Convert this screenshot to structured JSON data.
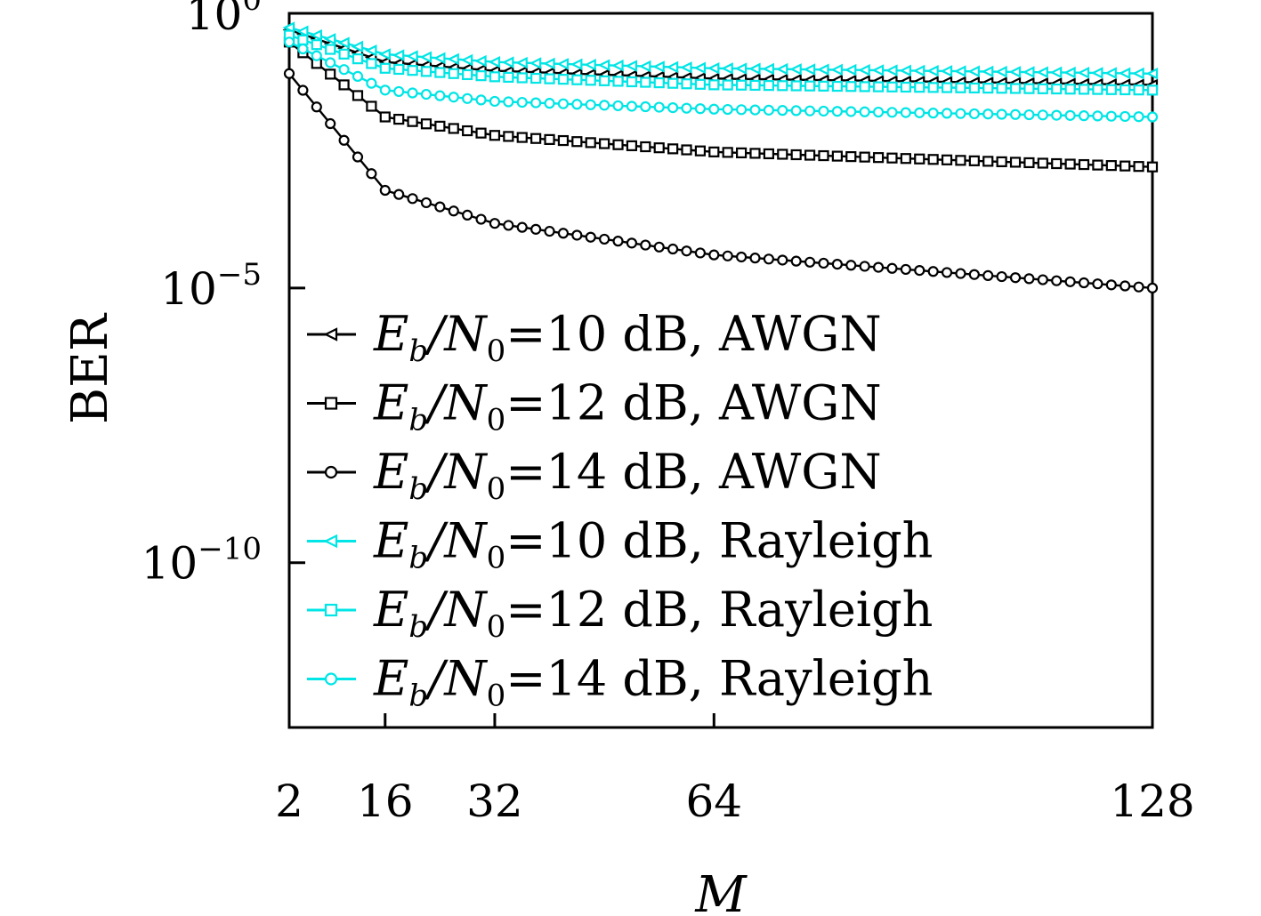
{
  "chart_data": {
    "type": "line",
    "xlabel": "M",
    "ylabel": "BER",
    "x_range": [
      2,
      128
    ],
    "y_range": [
      1e-13,
      1
    ],
    "y_scale": "log",
    "x_ticks": [
      2,
      16,
      32,
      64,
      128
    ],
    "y_ticks": [
      {
        "base": "10",
        "exp": "0",
        "value": 1
      },
      {
        "base": "10",
        "exp": "−5",
        "value": 1e-05
      },
      {
        "base": "10",
        "exp": "−10",
        "value": 1e-10
      }
    ],
    "grid": false,
    "legend_position": "bottom-left",
    "series": [
      {
        "name": "Eb/N0=10 dB, AWGN",
        "legend": {
          "pre": "E",
          "sub1": "b",
          "mid": "/N",
          "sub2": "0",
          "post": "=10 dB, AWGN"
        },
        "color": "#000000",
        "marker": "triangle-left",
        "points": [
          [
            2,
            0.5
          ],
          [
            16,
            0.13
          ],
          [
            32,
            0.09
          ],
          [
            64,
            0.065
          ],
          [
            128,
            0.05
          ]
        ]
      },
      {
        "name": "Eb/N0=12 dB, AWGN",
        "legend": {
          "pre": "E",
          "sub1": "b",
          "mid": "/N",
          "sub2": "0",
          "post": "=12 dB, AWGN"
        },
        "color": "#000000",
        "marker": "square",
        "points": [
          [
            2,
            0.3
          ],
          [
            16,
            0.013
          ],
          [
            32,
            0.006
          ],
          [
            64,
            0.003
          ],
          [
            128,
            0.0016
          ]
        ]
      },
      {
        "name": "Eb/N0=14 dB, AWGN",
        "legend": {
          "pre": "E",
          "sub1": "b",
          "mid": "/N",
          "sub2": "0",
          "post": "=14 dB, AWGN"
        },
        "color": "#000000",
        "marker": "circle",
        "points": [
          [
            2,
            0.08
          ],
          [
            16,
            0.0006
          ],
          [
            32,
            0.00015
          ],
          [
            64,
            4e-05
          ],
          [
            128,
            1e-05
          ]
        ]
      },
      {
        "name": "Eb/N0=10 dB, Rayleigh",
        "legend": {
          "pre": "E",
          "sub1": "b",
          "mid": "/N",
          "sub2": "0",
          "post": "=10 dB, Rayleigh"
        },
        "color": "#00e5e5",
        "marker": "triangle-left",
        "points": [
          [
            2,
            0.55
          ],
          [
            16,
            0.18
          ],
          [
            32,
            0.13
          ],
          [
            64,
            0.1
          ],
          [
            128,
            0.08
          ]
        ]
      },
      {
        "name": "Eb/N0=12 dB, Rayleigh",
        "legend": {
          "pre": "E",
          "sub1": "b",
          "mid": "/N",
          "sub2": "0",
          "post": "=12 dB, Rayleigh"
        },
        "color": "#00e5e5",
        "marker": "square",
        "points": [
          [
            2,
            0.4
          ],
          [
            16,
            0.1
          ],
          [
            32,
            0.07
          ],
          [
            64,
            0.05
          ],
          [
            128,
            0.04
          ]
        ]
      },
      {
        "name": "Eb/N0=14 dB, Rayleigh",
        "legend": {
          "pre": "E",
          "sub1": "b",
          "mid": "/N",
          "sub2": "0",
          "post": "=14 dB, Rayleigh"
        },
        "color": "#00e5e5",
        "marker": "circle",
        "points": [
          [
            2,
            0.3
          ],
          [
            16,
            0.04
          ],
          [
            32,
            0.025
          ],
          [
            64,
            0.018
          ],
          [
            128,
            0.013
          ]
        ]
      }
    ]
  }
}
